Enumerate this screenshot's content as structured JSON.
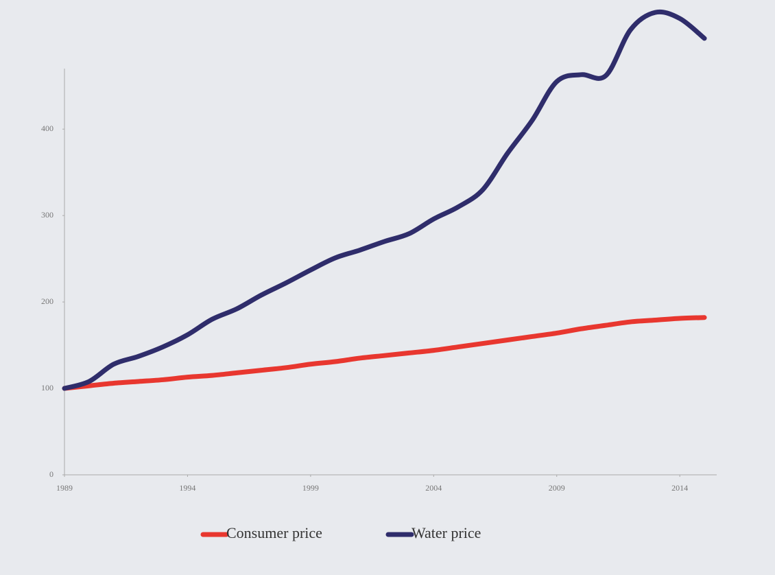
{
  "chart_data": {
    "type": "line",
    "x": [
      1989,
      1990,
      1991,
      1992,
      1993,
      1994,
      1995,
      1996,
      1997,
      1998,
      1999,
      2000,
      2001,
      2002,
      2003,
      2004,
      2005,
      2006,
      2007,
      2008,
      2009,
      2010,
      2011,
      2012,
      2013,
      2014,
      2015
    ],
    "series": [
      {
        "name": "Consumer price",
        "color": "#e8372f",
        "values": [
          100,
          103,
          106,
          108,
          110,
          113,
          115,
          118,
          121,
          124,
          128,
          131,
          135,
          138,
          141,
          144,
          148,
          152,
          156,
          160,
          164,
          169,
          173,
          177,
          179,
          181,
          182
        ]
      },
      {
        "name": "Water price",
        "color": "#2f2d6b",
        "values": [
          100,
          108,
          128,
          137,
          148,
          162,
          180,
          192,
          208,
          222,
          237,
          251,
          260,
          270,
          279,
          296,
          310,
          330,
          372,
          410,
          455,
          463,
          462,
          515,
          535,
          528,
          505
        ]
      }
    ],
    "xlim": [
      1989,
      2015.5
    ],
    "xticks": [
      1989,
      1994,
      1999,
      2004,
      2009,
      2014
    ],
    "ylim": [
      0,
      470
    ],
    "yticks": [
      0,
      100,
      200,
      300,
      400
    ],
    "legend": "bottom"
  }
}
